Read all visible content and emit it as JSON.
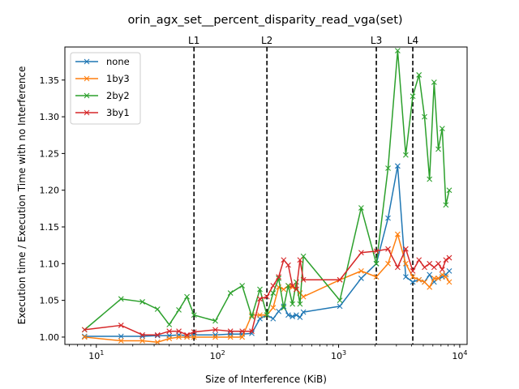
{
  "chart_data": {
    "type": "line",
    "title": "orin_agx_set__percent_disparity_read_vga(set)",
    "xlabel": "Size of Interference (KiB)",
    "ylabel": "Execution time / Execution Time with no Interference",
    "xscale": "log",
    "xlim": [
      5.5,
      11500
    ],
    "ylim": [
      0.99,
      1.395
    ],
    "x_ticks": [
      {
        "value": 10,
        "base": "10",
        "exp": "1"
      },
      {
        "value": 100,
        "base": "10",
        "exp": "2"
      },
      {
        "value": 1000,
        "base": "10",
        "exp": "3"
      },
      {
        "value": 10000,
        "base": "10",
        "exp": "4"
      }
    ],
    "y_ticks": [
      1.0,
      1.05,
      1.1,
      1.15,
      1.2,
      1.25,
      1.3,
      1.35
    ],
    "y_tick_labels": [
      "1.00",
      "1.05",
      "1.10",
      "1.15",
      "1.20",
      "1.25",
      "1.30",
      "1.35"
    ],
    "grid": false,
    "legend_position": "top-left",
    "vertical_lines": [
      {
        "label": "L1",
        "x": 64
      },
      {
        "label": "L2",
        "x": 256
      },
      {
        "label": "L3",
        "x": 2048
      },
      {
        "label": "L4",
        "x": 4096
      }
    ],
    "series": [
      {
        "name": "none",
        "color": "#1f77b4",
        "points": [
          [
            8,
            1.001
          ],
          [
            16,
            1.001
          ],
          [
            24,
            1.001
          ],
          [
            32,
            1.002
          ],
          [
            40,
            1.002
          ],
          [
            48,
            1.003
          ],
          [
            56,
            1.002
          ],
          [
            64,
            1.003
          ],
          [
            96,
            1.003
          ],
          [
            128,
            1.004
          ],
          [
            160,
            1.004
          ],
          [
            192,
            1.005
          ],
          [
            224,
            1.025
          ],
          [
            256,
            1.03
          ],
          [
            288,
            1.025
          ],
          [
            320,
            1.035
          ],
          [
            352,
            1.042
          ],
          [
            384,
            1.03
          ],
          [
            416,
            1.028
          ],
          [
            448,
            1.03
          ],
          [
            480,
            1.027
          ],
          [
            512,
            1.034
          ],
          [
            1024,
            1.042
          ],
          [
            1536,
            1.08
          ],
          [
            2048,
            1.1
          ],
          [
            2560,
            1.162
          ],
          [
            3072,
            1.233
          ],
          [
            3584,
            1.082
          ],
          [
            4096,
            1.075
          ],
          [
            4608,
            1.078
          ],
          [
            5120,
            1.075
          ],
          [
            5632,
            1.085
          ],
          [
            6144,
            1.075
          ],
          [
            6656,
            1.08
          ],
          [
            7168,
            1.082
          ],
          [
            7680,
            1.085
          ],
          [
            8192,
            1.09
          ]
        ]
      },
      {
        "name": "1by3",
        "color": "#ff7f0e",
        "points": [
          [
            8,
            1.0
          ],
          [
            16,
            0.995
          ],
          [
            24,
            0.995
          ],
          [
            32,
            0.993
          ],
          [
            40,
            0.998
          ],
          [
            48,
            1.0
          ],
          [
            56,
            1.0
          ],
          [
            64,
            1.0
          ],
          [
            96,
            1.0
          ],
          [
            128,
            1.0
          ],
          [
            160,
            1.0
          ],
          [
            192,
            1.03
          ],
          [
            224,
            1.03
          ],
          [
            256,
            1.03
          ],
          [
            288,
            1.04
          ],
          [
            320,
            1.068
          ],
          [
            352,
            1.065
          ],
          [
            384,
            1.07
          ],
          [
            416,
            1.068
          ],
          [
            448,
            1.065
          ],
          [
            480,
            1.06
          ],
          [
            512,
            1.055
          ],
          [
            1024,
            1.078
          ],
          [
            1536,
            1.09
          ],
          [
            2048,
            1.082
          ],
          [
            2560,
            1.1
          ],
          [
            3072,
            1.14
          ],
          [
            3584,
            1.1
          ],
          [
            4096,
            1.082
          ],
          [
            4608,
            1.078
          ],
          [
            5120,
            1.075
          ],
          [
            5632,
            1.068
          ],
          [
            6144,
            1.08
          ],
          [
            6656,
            1.08
          ],
          [
            7168,
            1.085
          ],
          [
            7680,
            1.082
          ],
          [
            8192,
            1.075
          ]
        ]
      },
      {
        "name": "2by2",
        "color": "#2ca02c",
        "points": [
          [
            8,
            1.01
          ],
          [
            16,
            1.052
          ],
          [
            24,
            1.048
          ],
          [
            32,
            1.038
          ],
          [
            40,
            1.017
          ],
          [
            48,
            1.037
          ],
          [
            56,
            1.055
          ],
          [
            64,
            1.03
          ],
          [
            96,
            1.022
          ],
          [
            128,
            1.06
          ],
          [
            160,
            1.07
          ],
          [
            192,
            1.028
          ],
          [
            224,
            1.065
          ],
          [
            256,
            1.03
          ],
          [
            288,
            1.06
          ],
          [
            320,
            1.08
          ],
          [
            352,
            1.04
          ],
          [
            384,
            1.07
          ],
          [
            416,
            1.045
          ],
          [
            448,
            1.075
          ],
          [
            480,
            1.045
          ],
          [
            512,
            1.11
          ],
          [
            1024,
            1.05
          ],
          [
            1536,
            1.176
          ],
          [
            2048,
            1.1
          ],
          [
            2560,
            1.23
          ],
          [
            3072,
            1.39
          ],
          [
            3584,
            1.248
          ],
          [
            4096,
            1.328
          ],
          [
            4608,
            1.357
          ],
          [
            5120,
            1.3
          ],
          [
            5632,
            1.215
          ],
          [
            6144,
            1.347
          ],
          [
            6656,
            1.256
          ],
          [
            7168,
            1.284
          ],
          [
            7680,
            1.18
          ],
          [
            8192,
            1.2
          ]
        ]
      },
      {
        "name": "3by1",
        "color": "#d62728",
        "points": [
          [
            8,
            1.01
          ],
          [
            16,
            1.016
          ],
          [
            24,
            1.003
          ],
          [
            32,
            1.003
          ],
          [
            40,
            1.008
          ],
          [
            48,
            1.008
          ],
          [
            56,
            1.003
          ],
          [
            64,
            1.007
          ],
          [
            96,
            1.01
          ],
          [
            128,
            1.008
          ],
          [
            160,
            1.008
          ],
          [
            192,
            1.008
          ],
          [
            224,
            1.052
          ],
          [
            256,
            1.055
          ],
          [
            288,
            1.07
          ],
          [
            320,
            1.082
          ],
          [
            352,
            1.105
          ],
          [
            384,
            1.098
          ],
          [
            416,
            1.07
          ],
          [
            448,
            1.065
          ],
          [
            480,
            1.105
          ],
          [
            512,
            1.078
          ],
          [
            1024,
            1.078
          ],
          [
            1536,
            1.115
          ],
          [
            2048,
            1.117
          ],
          [
            2560,
            1.12
          ],
          [
            3072,
            1.095
          ],
          [
            3584,
            1.12
          ],
          [
            4096,
            1.09
          ],
          [
            4608,
            1.105
          ],
          [
            5120,
            1.095
          ],
          [
            5632,
            1.1
          ],
          [
            6144,
            1.095
          ],
          [
            6656,
            1.1
          ],
          [
            7168,
            1.092
          ],
          [
            7680,
            1.105
          ],
          [
            8192,
            1.108
          ]
        ]
      }
    ]
  }
}
